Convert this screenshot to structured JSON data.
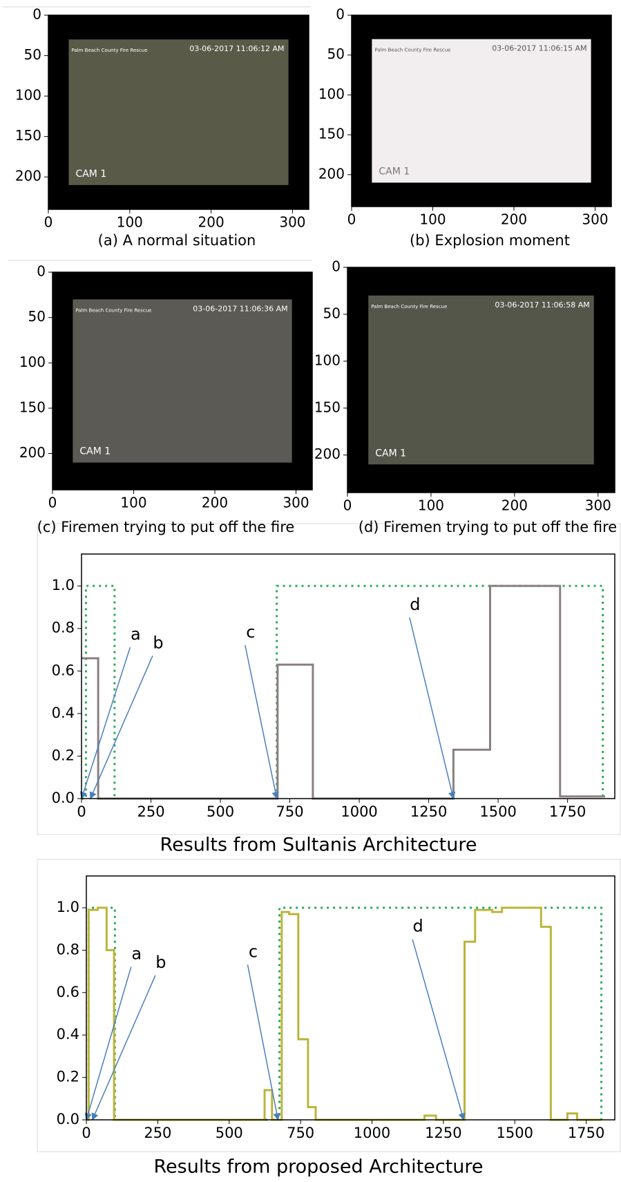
{
  "chart_data": [
    {
      "type": "image",
      "caption": "(a) A normal situation",
      "xlim": [
        0,
        320
      ],
      "ylim": [
        240,
        0
      ],
      "xticks": [
        0,
        100,
        200,
        300
      ],
      "yticks": [
        0,
        50,
        100,
        150,
        200
      ],
      "photo_color": "#5a5a48",
      "overlay": [
        "Palm Beach County Fire Rescue",
        "03-06-2017 11:06:12 AM",
        "CAM 1"
      ]
    },
    {
      "type": "image",
      "caption": "(b) Explosion moment",
      "xlim": [
        0,
        320
      ],
      "ylim": [
        240,
        0
      ],
      "xticks": [
        0,
        100,
        200,
        300
      ],
      "yticks": [
        0,
        50,
        100,
        150,
        200
      ],
      "photo_color": "#f2eef0",
      "overlay": [
        "Palm Beach County Fire Rescue",
        "03-06-2017 11:06:15 AM",
        "CAM 1"
      ]
    },
    {
      "type": "image",
      "caption": "(c) Firemen trying to put off the fire",
      "xlim": [
        0,
        320
      ],
      "ylim": [
        240,
        0
      ],
      "xticks": [
        0,
        100,
        200,
        300
      ],
      "yticks": [
        0,
        50,
        100,
        150,
        200
      ],
      "photo_color": "#5b5a55",
      "overlay": [
        "Palm Beach County Fire Rescue",
        "03-06-2017 11:06:36 AM",
        "CAM 1"
      ]
    },
    {
      "type": "image",
      "caption": "(d) Firemen trying to put off the fire",
      "xlim": [
        0,
        320
      ],
      "ylim": [
        240,
        0
      ],
      "xticks": [
        0,
        100,
        200,
        300
      ],
      "yticks": [
        0,
        50,
        100,
        150,
        200
      ],
      "photo_color": "#55564a",
      "overlay": [
        "Palm Beach County Fire Rescue",
        "03-06-2017 11:06:58 AM",
        "CAM 1"
      ]
    },
    {
      "type": "step",
      "caption": "Results from Sultanis Architecture",
      "xlim": [
        0,
        1920
      ],
      "ylim": [
        0,
        1.15
      ],
      "xticks": [
        0,
        250,
        500,
        750,
        1000,
        1250,
        1500,
        1750
      ],
      "yticks": [
        {
          "value": 0,
          "label": "0.0"
        },
        {
          "value": 0.2,
          "label": "0.2"
        },
        {
          "value": 0.4,
          "label": "0.4"
        },
        {
          "value": 0.6,
          "label": "0.6"
        },
        {
          "value": 0.8,
          "label": "0.8"
        },
        {
          "value": 1,
          "label": "1.0"
        }
      ],
      "series": [
        {
          "color": "#2ca85a",
          "style": "dotted",
          "x": [
            0,
            16,
            119,
            703,
            1877
          ],
          "values": [
            0,
            1,
            0,
            1,
            0
          ]
        },
        {
          "color": "#8a7f80",
          "style": "solid",
          "x": [
            0,
            60,
            706,
            833,
            1339,
            1471,
            1723,
            1885
          ],
          "values": [
            0.66,
            0.0,
            0.63,
            0.0,
            0.23,
            1.0,
            0.01,
            0.01
          ]
        }
      ],
      "annotations": [
        {
          "text": "a",
          "xy": [
            0,
            0
          ],
          "xytext": [
            195,
            0.77
          ]
        },
        {
          "text": "b",
          "xy": [
            32,
            0
          ],
          "xytext": [
            276,
            0.73
          ]
        },
        {
          "text": "c",
          "xy": [
            703,
            0
          ],
          "xytext": [
            609,
            0.78
          ]
        },
        {
          "text": "d",
          "xy": [
            1339,
            0
          ],
          "xytext": [
            1201,
            0.91
          ]
        }
      ]
    },
    {
      "type": "step",
      "caption": "Results from proposed Architecture",
      "xlim": [
        0,
        1850
      ],
      "ylim": [
        0,
        1.15
      ],
      "xticks": [
        0,
        250,
        500,
        750,
        1000,
        1250,
        1500,
        1750
      ],
      "yticks": [
        {
          "value": 0,
          "label": "0.0"
        },
        {
          "value": 0.2,
          "label": "0.2"
        },
        {
          "value": 0.4,
          "label": "0.4"
        },
        {
          "value": 0.6,
          "label": "0.6"
        },
        {
          "value": 0.8,
          "label": "0.8"
        },
        {
          "value": 1,
          "label": "1.0"
        }
      ],
      "series": [
        {
          "color": "#2ca85a",
          "style": "dotted",
          "x": [
            0,
            8,
            100,
            676,
            1803
          ],
          "values": [
            0,
            1,
            0,
            1,
            0
          ]
        },
        {
          "color": "#bcb43a",
          "style": "solid",
          "x": [
            0,
            8,
            40,
            71,
            97,
            624,
            650,
            684,
            710,
            742,
            776,
            803,
            1184,
            1224,
            1324,
            1361,
            1421,
            1455,
            1592,
            1626,
            1684,
            1718,
            1803
          ],
          "values": [
            0,
            0.99,
            1.0,
            0.8,
            0.0,
            0.14,
            0.0,
            0.98,
            0.97,
            0.38,
            0.06,
            0.0,
            0.02,
            0.0,
            0.84,
            0.99,
            0.98,
            1.0,
            0.91,
            0.0,
            0.03,
            0.0,
            0.0
          ]
        }
      ],
      "annotations": [
        {
          "text": "a",
          "xy": [
            0,
            0
          ],
          "xytext": [
            176,
            0.78
          ]
        },
        {
          "text": "b",
          "xy": [
            21,
            0
          ],
          "xytext": [
            261,
            0.74
          ]
        },
        {
          "text": "c",
          "xy": [
            671,
            0
          ],
          "xytext": [
            584,
            0.79
          ]
        },
        {
          "text": "d",
          "xy": [
            1321,
            0
          ],
          "xytext": [
            1161,
            0.91
          ]
        }
      ]
    }
  ]
}
